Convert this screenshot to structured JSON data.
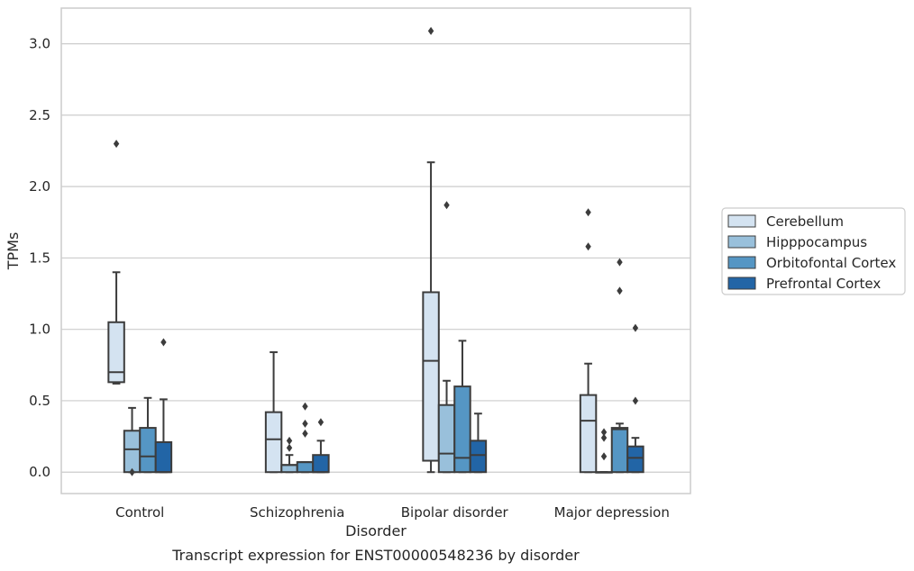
{
  "chart_data": {
    "type": "box",
    "title": "",
    "caption": "Transcript expression for ENST00000548236 by disorder",
    "xlabel": "Disorder",
    "ylabel": "TPMs",
    "ylim": [
      -0.15,
      3.25
    ],
    "yticks": [
      0.0,
      0.5,
      1.0,
      1.5,
      2.0,
      2.5,
      3.0
    ],
    "ytick_labels": [
      "0.0",
      "0.5",
      "1.0",
      "1.5",
      "2.0",
      "2.5",
      "3.0"
    ],
    "grid": "horizontal",
    "legend_position": "right",
    "categories": [
      "Control",
      "Schizophrenia",
      "Bipolar disorder",
      "Major depression"
    ],
    "series": [
      {
        "name": "Cerebellum",
        "color": "#d4e3f1",
        "boxes": [
          {
            "whislo": 0.62,
            "q1": 0.63,
            "med": 0.7,
            "q3": 1.05,
            "whishi": 1.4,
            "fliers": [
              2.3
            ]
          },
          {
            "whislo": 0.0,
            "q1": 0.0,
            "med": 0.23,
            "q3": 0.42,
            "whishi": 0.84,
            "fliers": []
          },
          {
            "whislo": 0.0,
            "q1": 0.08,
            "med": 0.78,
            "q3": 1.26,
            "whishi": 2.17,
            "fliers": [
              3.09
            ]
          },
          {
            "whislo": 0.0,
            "q1": 0.0,
            "med": 0.36,
            "q3": 0.54,
            "whishi": 0.76,
            "fliers": [
              1.58,
              1.82
            ]
          }
        ]
      },
      {
        "name": "Hipppocampus",
        "color": "#99c0db",
        "boxes": [
          {
            "whislo": 0.0,
            "q1": 0.0,
            "med": 0.16,
            "q3": 0.29,
            "whishi": 0.45,
            "fliers": [
              0.0
            ]
          },
          {
            "whislo": 0.0,
            "q1": 0.0,
            "med": 0.05,
            "q3": 0.05,
            "whishi": 0.12,
            "fliers": [
              0.17,
              0.22
            ]
          },
          {
            "whislo": 0.0,
            "q1": 0.0,
            "med": 0.13,
            "q3": 0.47,
            "whishi": 0.64,
            "fliers": [
              1.87
            ]
          },
          {
            "whislo": 0.0,
            "q1": 0.0,
            "med": 0.0,
            "q3": 0.0,
            "whishi": 0.0,
            "fliers": [
              0.11,
              0.24,
              0.28
            ]
          }
        ]
      },
      {
        "name": "Orbitofontal Cortex",
        "color": "#5596c4",
        "boxes": [
          {
            "whislo": 0.0,
            "q1": 0.0,
            "med": 0.11,
            "q3": 0.31,
            "whishi": 0.52,
            "fliers": []
          },
          {
            "whislo": 0.0,
            "q1": 0.0,
            "med": 0.07,
            "q3": 0.07,
            "whishi": 0.07,
            "fliers": [
              0.27,
              0.34,
              0.46
            ]
          },
          {
            "whislo": 0.0,
            "q1": 0.0,
            "med": 0.1,
            "q3": 0.6,
            "whishi": 0.92,
            "fliers": []
          },
          {
            "whislo": 0.0,
            "q1": 0.0,
            "med": 0.3,
            "q3": 0.31,
            "whishi": 0.34,
            "fliers": [
              1.27,
              1.47
            ]
          }
        ]
      },
      {
        "name": "Prefrontal Cortex",
        "color": "#2265a6",
        "boxes": [
          {
            "whislo": 0.0,
            "q1": 0.0,
            "med": 0.0,
            "q3": 0.21,
            "whishi": 0.51,
            "fliers": [
              0.91
            ]
          },
          {
            "whislo": 0.0,
            "q1": 0.0,
            "med": 0.0,
            "q3": 0.12,
            "whishi": 0.22,
            "fliers": [
              0.35
            ]
          },
          {
            "whislo": 0.0,
            "q1": 0.0,
            "med": 0.12,
            "q3": 0.22,
            "whishi": 0.41,
            "fliers": []
          },
          {
            "whislo": 0.0,
            "q1": 0.0,
            "med": 0.1,
            "q3": 0.18,
            "whishi": 0.24,
            "fliers": [
              0.5,
              1.01
            ]
          }
        ]
      }
    ]
  }
}
